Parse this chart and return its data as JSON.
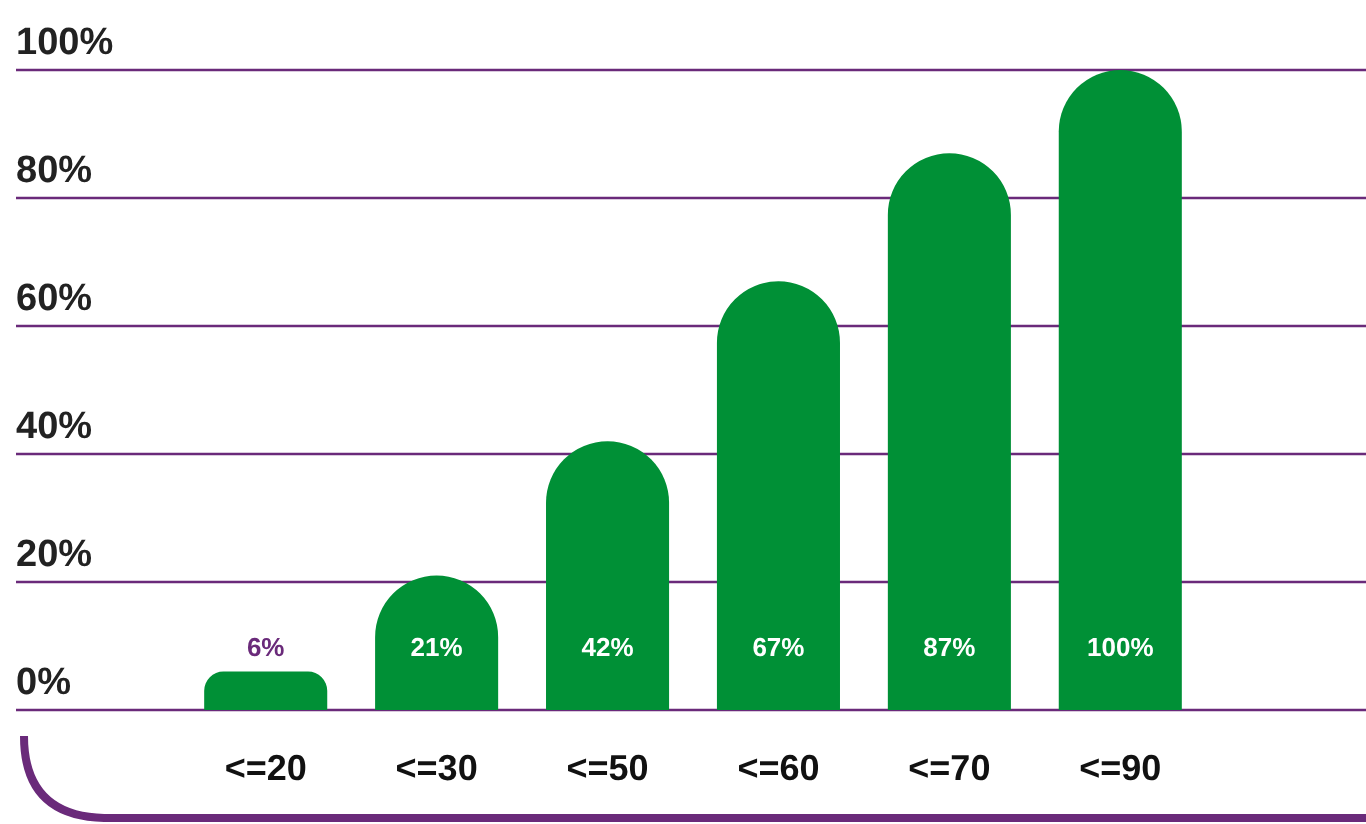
{
  "chart_data": {
    "type": "bar",
    "categories": [
      "<=20",
      "<=30",
      "<=50",
      "<=60",
      "<=70",
      "<=90"
    ],
    "values": [
      6,
      21,
      42,
      67,
      87,
      100
    ],
    "color": "#009036",
    "value_labels": [
      "6%",
      "21%",
      "42%",
      "67%",
      "87%",
      "100%"
    ],
    "ylim": [
      0,
      100
    ],
    "yticks": [
      {
        "value": 0,
        "label": "0%"
      },
      {
        "value": 20,
        "label": "20%"
      },
      {
        "value": 40,
        "label": "40%"
      },
      {
        "value": 60,
        "label": "60%"
      },
      {
        "value": 80,
        "label": "80%"
      },
      {
        "value": 100,
        "label": "100%"
      }
    ],
    "grid": "y"
  }
}
